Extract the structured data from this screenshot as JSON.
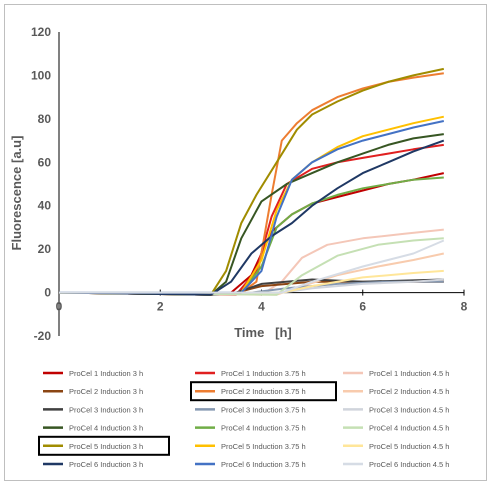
{
  "chart_data": {
    "type": "line",
    "title": "",
    "xlabel": "Time   [h]",
    "ylabel": "Fluorescence   [a.u]",
    "xlim": [
      0,
      8
    ],
    "ylim": [
      -20,
      120
    ],
    "xticks": [
      0,
      2,
      4,
      6,
      8
    ],
    "yticks": [
      -20,
      0,
      20,
      40,
      60,
      80,
      100,
      120
    ],
    "grid": false,
    "legend_position": "bottom",
    "highlighted_series": [
      "ProCel 2 Induction 3.75 h",
      "ProCel 5 Induction 3 h"
    ],
    "series": [
      {
        "name": "ProCel 1 Induction 3 h",
        "color": "#c00000",
        "x": [
          0,
          3.0,
          3.4,
          3.8,
          4.2,
          4.6,
          5.0,
          5.5,
          6.0,
          6.5,
          7.0,
          7.6
        ],
        "y": [
          0,
          -1,
          0,
          8,
          28,
          36,
          41,
          44,
          47,
          50,
          52,
          55
        ]
      },
      {
        "name": "ProCel 1 Induction 3.75 h",
        "color": "#e02020",
        "x": [
          0,
          3.5,
          3.9,
          4.2,
          4.5,
          5.0,
          5.5,
          6.0,
          6.5,
          7.0,
          7.6
        ],
        "y": [
          0,
          -1,
          10,
          35,
          50,
          57,
          60,
          62,
          64,
          66,
          68
        ]
      },
      {
        "name": "ProCel 1 Induction 4.5 h",
        "color": "#f4c7b8",
        "x": [
          0,
          4.0,
          4.4,
          4.8,
          5.3,
          6.0,
          6.8,
          7.6
        ],
        "y": [
          0,
          -1,
          5,
          16,
          22,
          25,
          27,
          29
        ]
      },
      {
        "name": "ProCel 2 Induction 3 h",
        "color": "#8b4513",
        "x": [
          0,
          3.0,
          3.5,
          4.0,
          5.0,
          6.0,
          7.6
        ],
        "y": [
          0,
          -1,
          0,
          3,
          5,
          5,
          5
        ]
      },
      {
        "name": "ProCel 2 Induction 3.75 h",
        "color": "#ed7d31",
        "x": [
          0,
          3.6,
          3.9,
          4.2,
          4.4,
          4.7,
          5.0,
          5.5,
          6.0,
          6.5,
          7.0,
          7.6
        ],
        "y": [
          0,
          0,
          5,
          45,
          70,
          78,
          84,
          90,
          94,
          97,
          99,
          101
        ]
      },
      {
        "name": "ProCel 2 Induction 4.5 h",
        "color": "#f8cbad",
        "x": [
          0,
          4.3,
          4.8,
          5.5,
          6.3,
          7.0,
          7.6
        ],
        "y": [
          0,
          -1,
          3,
          8,
          12,
          15,
          18
        ]
      },
      {
        "name": "ProCel 3 Induction 3 h",
        "color": "#404040",
        "x": [
          0,
          3.0,
          3.5,
          4.0,
          5.0,
          6.0,
          7.6
        ],
        "y": [
          0,
          -1,
          0,
          4,
          6,
          5,
          6
        ]
      },
      {
        "name": "ProCel 3 Induction 3.75 h",
        "color": "#8497b0",
        "x": [
          0,
          3.8,
          4.5,
          5.5,
          6.5,
          7.6
        ],
        "y": [
          0,
          0,
          2,
          4,
          5,
          5
        ]
      },
      {
        "name": "ProCel 3 Induction 4.5 h",
        "color": "#d0d4dc",
        "x": [
          0,
          4.4,
          5.0,
          6.0,
          7.0,
          7.6
        ],
        "y": [
          0,
          0,
          2,
          4,
          5,
          6
        ]
      },
      {
        "name": "ProCel 4 Induction 3 h",
        "color": "#375623",
        "x": [
          0,
          3.0,
          3.3,
          3.6,
          4.0,
          4.5,
          5.0,
          5.5,
          6.0,
          6.5,
          7.0,
          7.6
        ],
        "y": [
          0,
          -1,
          5,
          25,
          42,
          50,
          55,
          60,
          64,
          68,
          71,
          73
        ]
      },
      {
        "name": "ProCel 4 Induction 3.75 h",
        "color": "#70ad47",
        "x": [
          0,
          3.6,
          4.0,
          4.3,
          4.6,
          5.0,
          5.5,
          6.0,
          6.5,
          7.0,
          7.6
        ],
        "y": [
          0,
          0,
          12,
          30,
          36,
          41,
          45,
          48,
          50,
          52,
          53
        ]
      },
      {
        "name": "ProCel 4 Induction 4.5 h",
        "color": "#c5e0b4",
        "x": [
          0,
          4.3,
          4.8,
          5.5,
          6.3,
          7.0,
          7.6
        ],
        "y": [
          0,
          -1,
          8,
          17,
          22,
          24,
          25
        ]
      },
      {
        "name": "ProCel 5 Induction 3 h",
        "color": "#a08c00",
        "x": [
          0,
          3.0,
          3.3,
          3.6,
          3.9,
          4.3,
          4.7,
          5.0,
          5.5,
          6.0,
          6.5,
          7.0,
          7.6
        ],
        "y": [
          0,
          -1,
          10,
          32,
          45,
          60,
          75,
          82,
          88,
          93,
          97,
          100,
          103
        ]
      },
      {
        "name": "ProCel 5 Induction 3.75 h",
        "color": "#ffc000",
        "x": [
          0,
          3.6,
          4.0,
          4.3,
          4.6,
          5.0,
          5.5,
          6.0,
          6.5,
          7.0,
          7.6
        ],
        "y": [
          0,
          0,
          15,
          38,
          52,
          60,
          67,
          72,
          75,
          78,
          81
        ]
      },
      {
        "name": "ProCel 5 Induction 4.5 h",
        "color": "#ffe699",
        "x": [
          0,
          4.4,
          5.0,
          6.0,
          7.0,
          7.6
        ],
        "y": [
          0,
          0,
          3,
          7,
          9,
          10
        ]
      },
      {
        "name": "ProCel 6 Induction 3 h",
        "color": "#1f3864",
        "x": [
          0,
          3.0,
          3.4,
          3.8,
          4.2,
          4.6,
          5.0,
          5.5,
          6.0,
          6.5,
          7.0,
          7.6
        ],
        "y": [
          0,
          -1,
          5,
          18,
          26,
          32,
          40,
          48,
          55,
          60,
          65,
          70
        ]
      },
      {
        "name": "ProCel 6 Induction 3.75 h",
        "color": "#4472c4",
        "x": [
          0,
          3.6,
          4.0,
          4.3,
          4.6,
          5.0,
          5.5,
          6.0,
          6.5,
          7.0,
          7.6
        ],
        "y": [
          0,
          0,
          10,
          35,
          52,
          60,
          66,
          70,
          73,
          76,
          79
        ]
      },
      {
        "name": "ProCel 6 Induction 4.5 h",
        "color": "#d6dce5",
        "x": [
          0,
          4.4,
          5.0,
          6.0,
          7.0,
          7.6
        ],
        "y": [
          0,
          0,
          5,
          12,
          18,
          24
        ]
      }
    ]
  }
}
